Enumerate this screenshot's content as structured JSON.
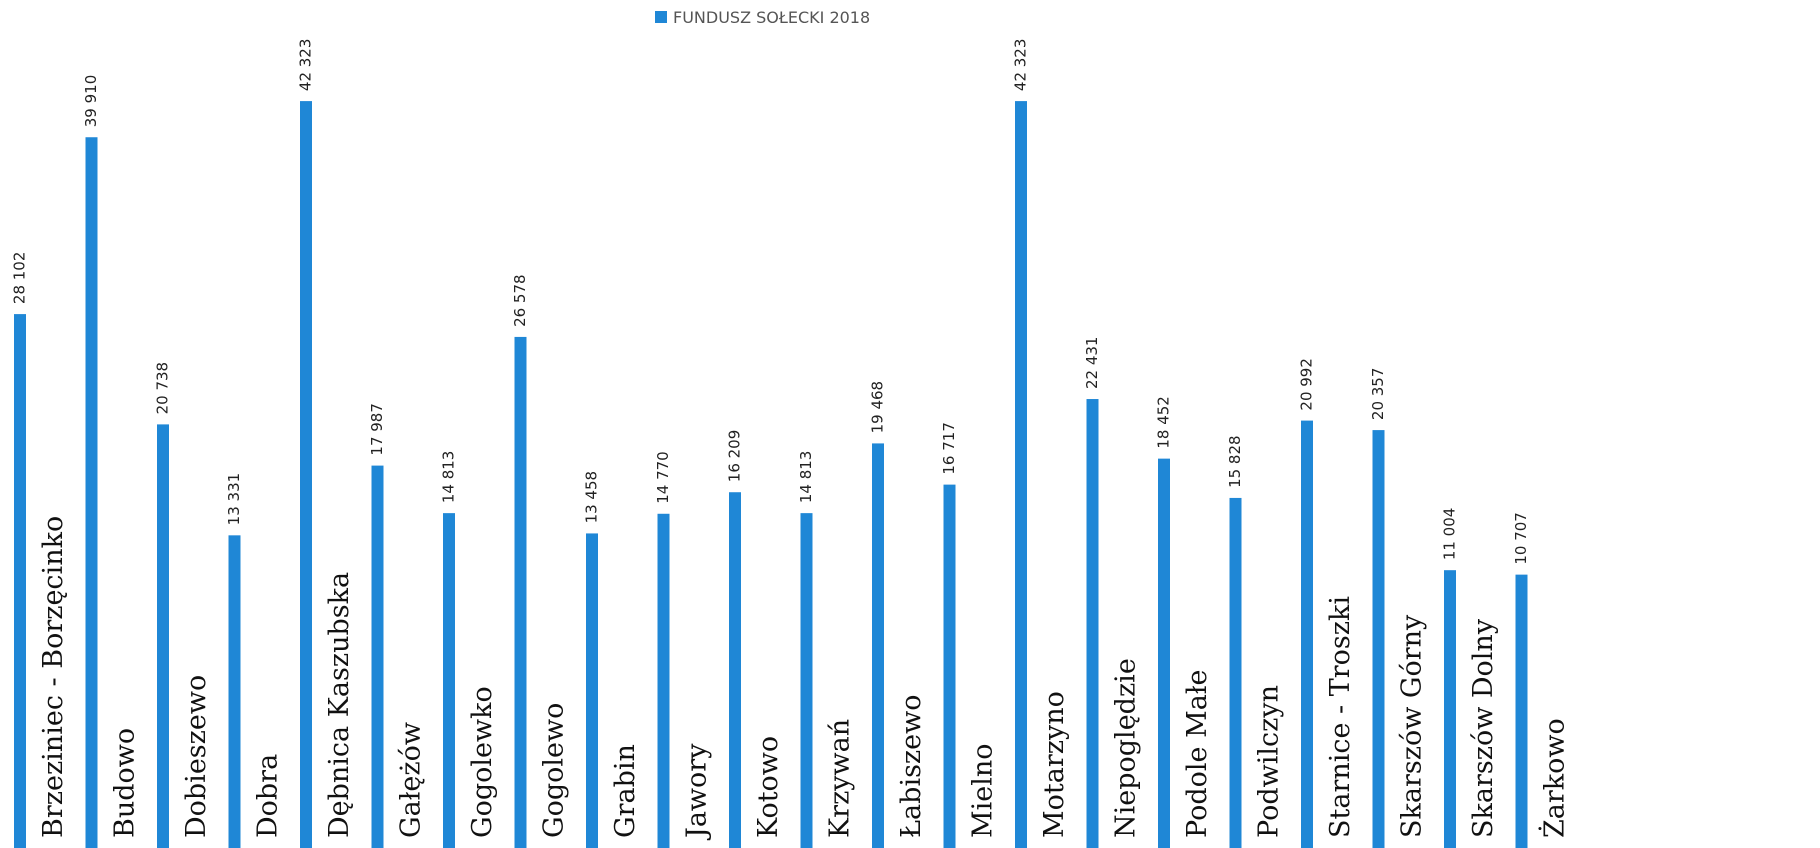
{
  "chart_data": {
    "type": "bar",
    "categories": [
      "Brzeziniec - Borzęcinko",
      "Budowo",
      "Dobieszewo",
      "Dobra",
      "Dębnica Kaszubska",
      "Gałężów",
      "Gogolewko",
      "Gogolewo",
      "Grabin",
      "Jawory",
      "Kotowo",
      "Krzywań",
      "Łabiszewo",
      "Mielno",
      "Motarzyno",
      "Niepoględzie",
      "Podole Małe",
      "Podwilczyn",
      "Starnice - Troszki",
      "Skarszów Górny",
      "Skarszów Dolny",
      "Żarkowo"
    ],
    "series": [
      {
        "name": "FUNDUSZ SOŁECKI 2018",
        "color": "#1f87d6",
        "values": [
          28102,
          39910,
          20738,
          13331,
          42323,
          17987,
          14813,
          26578,
          13458,
          14770,
          16209,
          14813,
          19468,
          16717,
          42323,
          22431,
          18452,
          15828,
          20992,
          20357,
          11004,
          10707
        ],
        "value_labels": [
          "28 102",
          "39 910",
          "20 738",
          "13 331",
          "42 323",
          "17 987",
          "14 813",
          "26 578",
          "13 458",
          "14 770",
          "16 209",
          "14 813",
          "19 468",
          "16 717",
          "42 323",
          "22 431",
          "18 452",
          "15 828",
          "20 992",
          "20 357",
          "11 004",
          "10 707"
        ]
      }
    ],
    "ylim": [
      0,
      45000
    ],
    "legend": "top"
  }
}
